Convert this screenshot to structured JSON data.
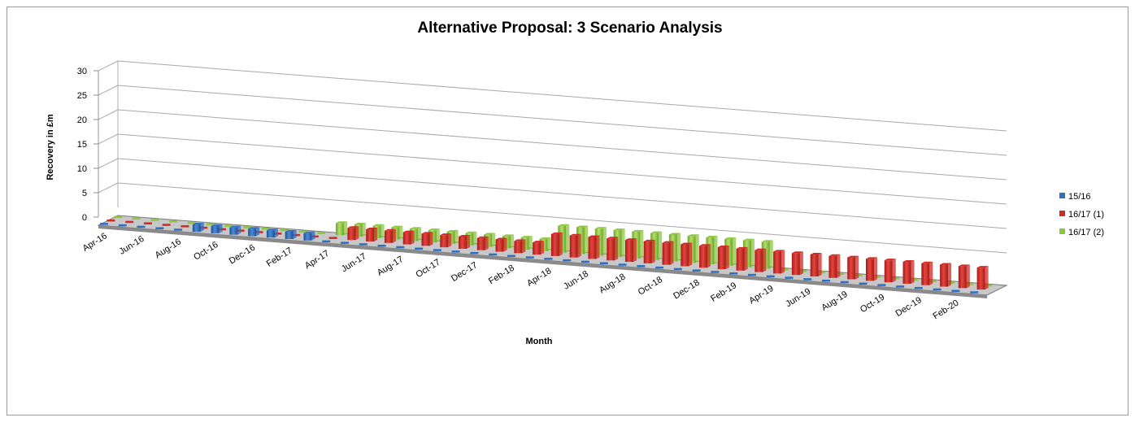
{
  "chart_data": {
    "type": "bar",
    "subtype": "3d-clustered-column",
    "title": "Alternative Proposal: 3 Scenario Analysis",
    "xlabel": "Month",
    "ylabel": "Recovery in £m",
    "ylim": [
      0,
      30
    ],
    "yticks": [
      "0",
      "5",
      "10",
      "15",
      "20",
      "25",
      "30"
    ],
    "grid": true,
    "legend_position": "right",
    "categories": [
      "Apr-16",
      "May-16",
      "Jun-16",
      "Jul-16",
      "Aug-16",
      "Sep-16",
      "Oct-16",
      "Nov-16",
      "Dec-16",
      "Jan-17",
      "Feb-17",
      "Mar-17",
      "Apr-17",
      "May-17",
      "Jun-17",
      "Jul-17",
      "Aug-17",
      "Sep-17",
      "Oct-17",
      "Nov-17",
      "Dec-17",
      "Jan-18",
      "Feb-18",
      "Mar-18",
      "Apr-18",
      "May-18",
      "Jun-18",
      "Jul-18",
      "Aug-18",
      "Sep-18",
      "Oct-18",
      "Nov-18",
      "Dec-18",
      "Jan-19",
      "Feb-19",
      "Mar-19",
      "Apr-19",
      "May-19",
      "Jun-19",
      "Jul-19",
      "Aug-19",
      "Sep-19",
      "Oct-19",
      "Nov-19",
      "Dec-19",
      "Jan-20",
      "Feb-20",
      "Mar-20"
    ],
    "xtick_labels": [
      "Apr-16",
      "Jun-16",
      "Aug-16",
      "Oct-16",
      "Dec-16",
      "Feb-17",
      "Apr-17",
      "Jun-17",
      "Aug-17",
      "Oct-17",
      "Dec-17",
      "Feb-18",
      "Apr-18",
      "Jun-18",
      "Aug-18",
      "Oct-18",
      "Dec-18",
      "Feb-19",
      "Apr-19",
      "Jun-19",
      "Aug-19",
      "Oct-19",
      "Dec-19",
      "Feb-20"
    ],
    "series": [
      {
        "name": "15/16",
        "color": "#2e6fc2",
        "values": [
          0,
          0,
          0,
          0,
          0,
          1.5,
          1.5,
          1.5,
          1.5,
          1.5,
          1.5,
          1.5,
          0,
          0,
          0,
          0,
          0,
          0,
          0,
          0,
          0,
          0,
          0,
          0,
          0,
          0,
          0,
          0,
          0,
          0,
          0,
          0,
          0,
          0,
          0,
          0,
          0,
          0,
          0,
          0,
          0,
          0,
          0,
          0,
          0,
          0,
          0,
          0
        ]
      },
      {
        "name": "16/17 (1)",
        "color": "#d02a24",
        "values": [
          0,
          0,
          0,
          0,
          0,
          0,
          0,
          0,
          0,
          0,
          0,
          0,
          0,
          2.5,
          2.5,
          2.5,
          2.5,
          2.5,
          2.5,
          2.5,
          2.5,
          2.5,
          2.5,
          2.5,
          4.5,
          4.5,
          4.5,
          4.5,
          4.5,
          4.5,
          4.5,
          4.5,
          4.5,
          4.5,
          4.5,
          4.5,
          4.5,
          4.5,
          4.5,
          4.5,
          4.5,
          4.5,
          4.5,
          4.5,
          4.5,
          4.5,
          4.5,
          4.5
        ]
      },
      {
        "name": "16/17 (2)",
        "color": "#8ec63f",
        "values": [
          0,
          0,
          0,
          0,
          0,
          0,
          0,
          0,
          0,
          0,
          0,
          0,
          2.5,
          2.5,
          2.5,
          2.5,
          2.5,
          2.5,
          2.5,
          2.5,
          2.5,
          2.5,
          2.5,
          2.5,
          5.5,
          5.5,
          5.5,
          5.5,
          5.5,
          5.5,
          5.5,
          5.5,
          5.5,
          5.5,
          5.5,
          5.5,
          0,
          0,
          0,
          0,
          0,
          0,
          0,
          0,
          0,
          0,
          0,
          0
        ]
      }
    ]
  }
}
